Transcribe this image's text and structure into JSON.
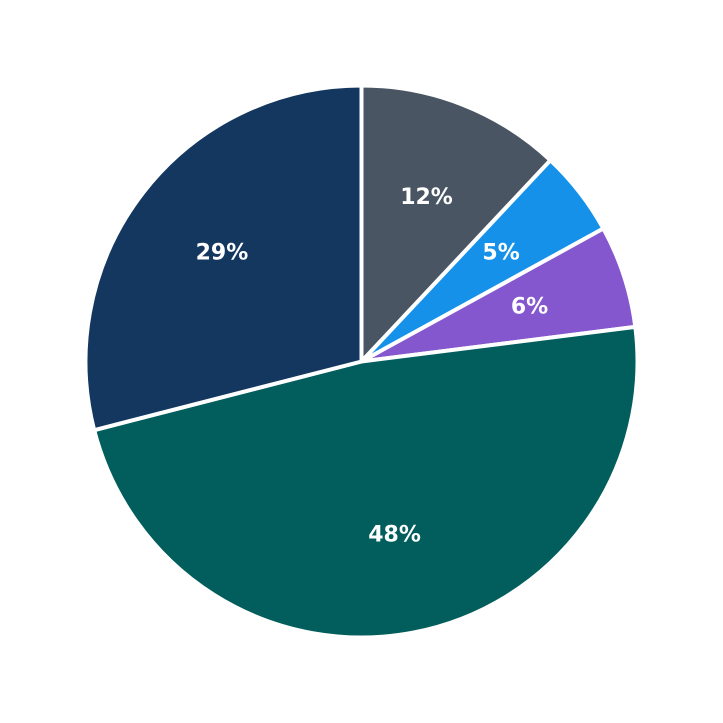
{
  "chart_data": {
    "type": "pie",
    "start_angle": "12 o'clock",
    "direction": "clockwise",
    "slices": [
      {
        "label": "12%",
        "value": 12,
        "color": "#4a5563"
      },
      {
        "label": "5%",
        "value": 5,
        "color": "#1591ea"
      },
      {
        "label": "6%",
        "value": 6,
        "color": "#8457cf"
      },
      {
        "label": "48%",
        "value": 48,
        "color": "#025e5c"
      },
      {
        "label": "29%",
        "value": 29,
        "color": "#14375f"
      }
    ]
  }
}
